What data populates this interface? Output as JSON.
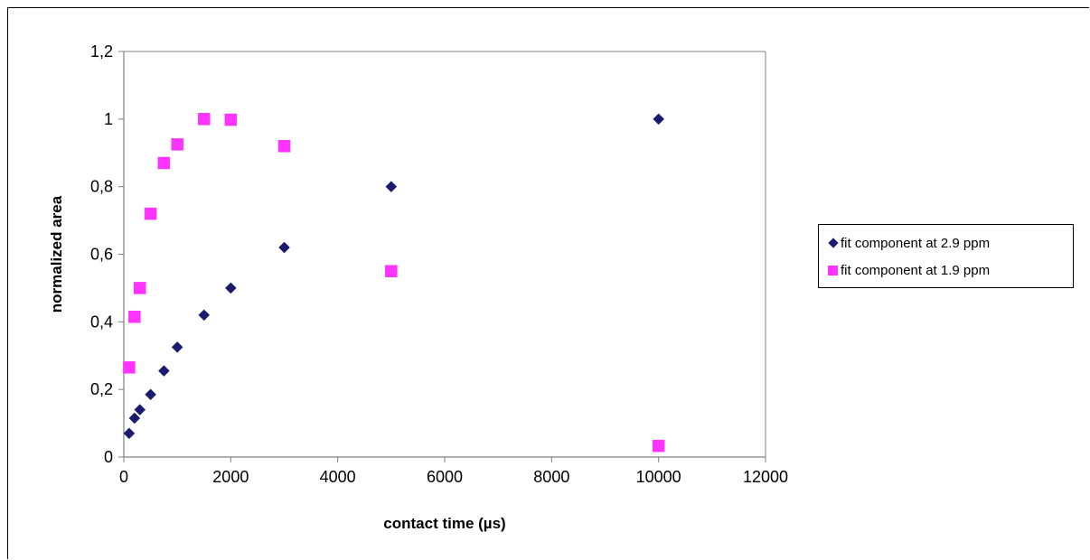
{
  "chart_data": {
    "type": "scatter",
    "title": "",
    "xlabel": "contact time (µs)",
    "ylabel": "normalized area",
    "xlim": [
      0,
      12000
    ],
    "ylim": [
      0,
      1.2
    ],
    "x_ticks": [
      "0",
      "2000",
      "4000",
      "6000",
      "8000",
      "10000",
      "12000"
    ],
    "y_ticks": [
      "0",
      "0,2",
      "0,4",
      "0,6",
      "0,8",
      "1",
      "1,2"
    ],
    "grid": false,
    "legend_position": "right",
    "series": [
      {
        "name": "fit component at 2.9 ppm",
        "marker": "diamond",
        "color": "#1a1a6e",
        "x": [
          100,
          200,
          300,
          500,
          750,
          1000,
          1500,
          2000,
          3000,
          5000,
          10000
        ],
        "y": [
          0.07,
          0.115,
          0.14,
          0.185,
          0.255,
          0.325,
          0.42,
          0.5,
          0.62,
          0.8,
          1.0
        ]
      },
      {
        "name": "fit component at 1.9 ppm",
        "marker": "square",
        "color": "#ff33ff",
        "x": [
          100,
          200,
          300,
          500,
          750,
          1000,
          1500,
          2000,
          3000,
          5000,
          10000
        ],
        "y": [
          0.265,
          0.415,
          0.5,
          0.72,
          0.87,
          0.925,
          1.0,
          0.998,
          0.92,
          0.55,
          0.033
        ]
      }
    ]
  }
}
